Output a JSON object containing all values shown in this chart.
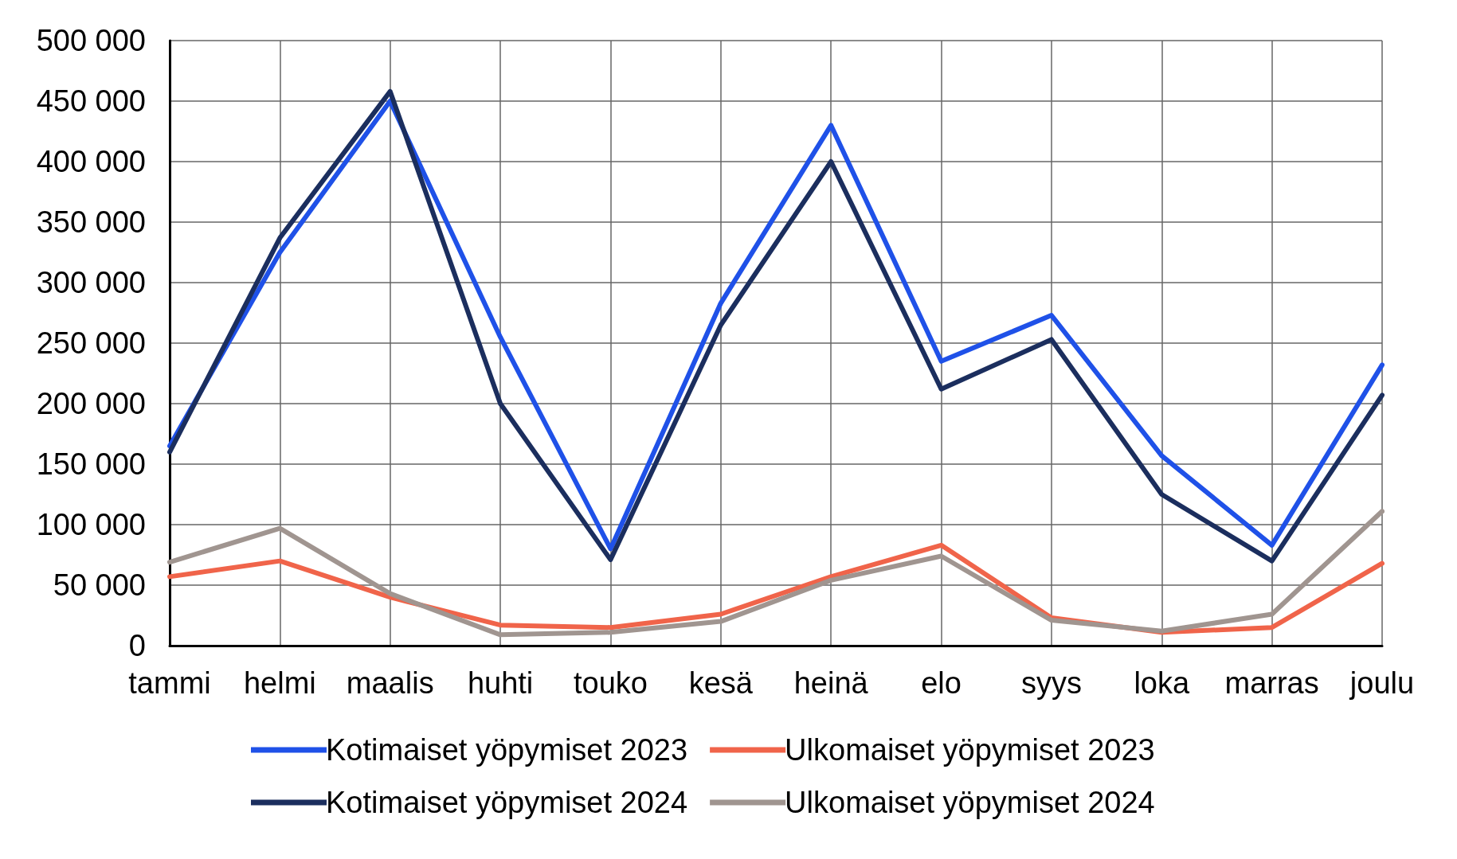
{
  "chart_data": {
    "type": "line",
    "categories": [
      "tammi",
      "helmi",
      "maalis",
      "huhti",
      "touko",
      "kesä",
      "heinä",
      "elo",
      "syys",
      "loka",
      "marras",
      "joulu"
    ],
    "series": [
      {
        "name": "Kotimaiset yöpymiset 2023",
        "color": "#1f51e8",
        "values": [
          165000,
          325000,
          450000,
          255000,
          80000,
          283000,
          430000,
          235000,
          273000,
          157000,
          83000,
          232000
        ]
      },
      {
        "name": "Ulkomaiset yöpymiset 2023",
        "color": "#f0644a",
        "values": [
          57000,
          70000,
          40000,
          17000,
          15000,
          26000,
          57000,
          83000,
          23000,
          11000,
          15000,
          68000
        ]
      },
      {
        "name": "Kotimaiset yöpymiset 2024",
        "color": "#1b2e5e",
        "values": [
          160000,
          337000,
          458000,
          200000,
          71000,
          265000,
          400000,
          212000,
          253000,
          125000,
          70000,
          207000
        ]
      },
      {
        "name": "Ulkomaiset yöpymiset 2024",
        "color": "#a09590",
        "values": [
          69000,
          97000,
          43000,
          9000,
          11000,
          20000,
          54000,
          74000,
          21000,
          12000,
          26000,
          111000
        ]
      }
    ],
    "ylim": [
      0,
      500000
    ],
    "yticks": [
      {
        "value": 0,
        "label": "0"
      },
      {
        "value": 50000,
        "label": "50 000"
      },
      {
        "value": 100000,
        "label": "100 000"
      },
      {
        "value": 150000,
        "label": "150 000"
      },
      {
        "value": 200000,
        "label": "200 000"
      },
      {
        "value": 250000,
        "label": "250 000"
      },
      {
        "value": 300000,
        "label": "300 000"
      },
      {
        "value": 350000,
        "label": "350 000"
      },
      {
        "value": 400000,
        "label": "400 000"
      },
      {
        "value": 450000,
        "label": "450 000"
      },
      {
        "value": 500000,
        "label": "500 000"
      }
    ],
    "grid": true,
    "legend": "bottom",
    "marker": "none",
    "line_style": "solid"
  }
}
